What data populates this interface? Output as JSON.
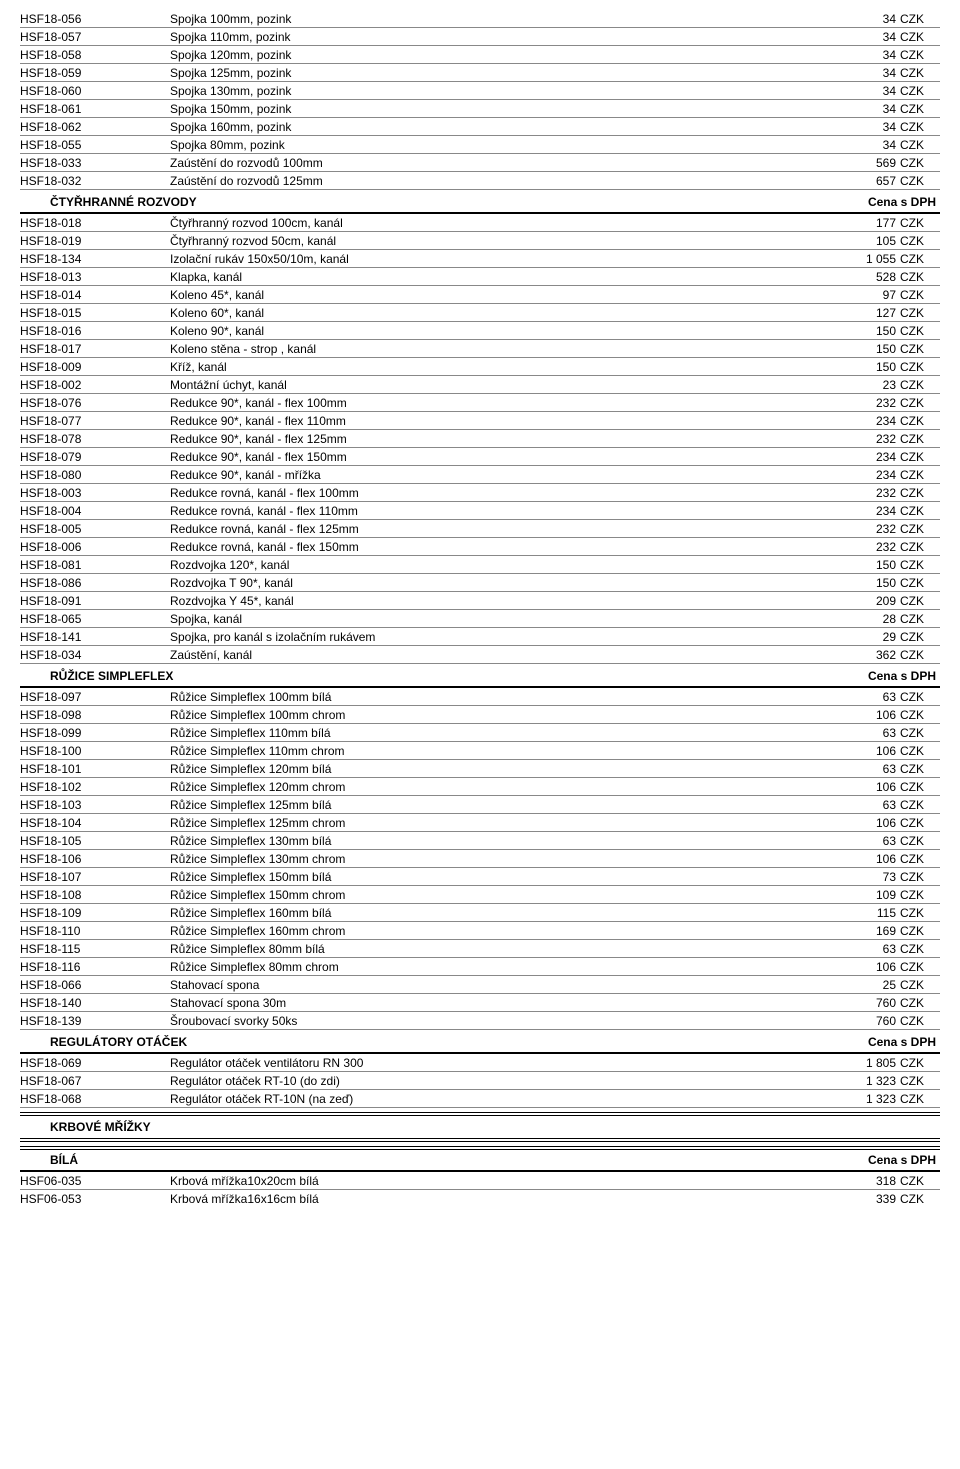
{
  "font_size": 12,
  "colors": {
    "text": "#000000",
    "bg": "#ffffff",
    "line": "#888888",
    "line_bold": "#000000"
  },
  "currency": "CZK",
  "price_header": "Cena s DPH",
  "sections": [
    {
      "type": "plain",
      "rows": [
        {
          "code": "HSF18-056",
          "desc": "Spojka 100mm, pozink",
          "price": "34"
        },
        {
          "code": "HSF18-057",
          "desc": "Spojka 110mm, pozink",
          "price": "34"
        },
        {
          "code": "HSF18-058",
          "desc": "Spojka 120mm, pozink",
          "price": "34"
        },
        {
          "code": "HSF18-059",
          "desc": "Spojka 125mm, pozink",
          "price": "34"
        },
        {
          "code": "HSF18-060",
          "desc": "Spojka 130mm, pozink",
          "price": "34"
        },
        {
          "code": "HSF18-061",
          "desc": "Spojka 150mm, pozink",
          "price": "34"
        },
        {
          "code": "HSF18-062",
          "desc": "Spojka 160mm, pozink",
          "price": "34"
        },
        {
          "code": "HSF18-055",
          "desc": "Spojka 80mm, pozink",
          "price": "34"
        },
        {
          "code": "HSF18-033",
          "desc": "Zaústění do rozvodů 100mm",
          "price": "569"
        },
        {
          "code": "HSF18-032",
          "desc": "Zaústění do rozvodů 125mm",
          "price": "657"
        }
      ]
    },
    {
      "type": "header",
      "title": "ČTYŘHRANNÉ ROZVODY",
      "rows": [
        {
          "code": "HSF18-018",
          "desc": "Čtyřhranný rozvod 100cm, kanál",
          "price": "177"
        },
        {
          "code": "HSF18-019",
          "desc": "Čtyřhranný rozvod 50cm, kanál",
          "price": "105"
        },
        {
          "code": "HSF18-134",
          "desc": "Izolační rukáv 150x50/10m, kanál",
          "price": "1 055"
        },
        {
          "code": "HSF18-013",
          "desc": "Klapka, kanál",
          "price": "528"
        },
        {
          "code": "HSF18-014",
          "desc": "Koleno 45*, kanál",
          "price": "97"
        },
        {
          "code": "HSF18-015",
          "desc": "Koleno 60*, kanál",
          "price": "127"
        },
        {
          "code": "HSF18-016",
          "desc": "Koleno 90*, kanál",
          "price": "150"
        },
        {
          "code": "HSF18-017",
          "desc": "Koleno stěna - strop , kanál",
          "price": "150"
        },
        {
          "code": "HSF18-009",
          "desc": "Kříž, kanál",
          "price": "150"
        },
        {
          "code": "HSF18-002",
          "desc": "Montážní úchyt, kanál",
          "price": "23"
        },
        {
          "code": "HSF18-076",
          "desc": "Redukce 90*, kanál - flex 100mm",
          "price": "232"
        },
        {
          "code": "HSF18-077",
          "desc": "Redukce 90*, kanál - flex 110mm",
          "price": "234"
        },
        {
          "code": "HSF18-078",
          "desc": "Redukce 90*, kanál - flex 125mm",
          "price": "232"
        },
        {
          "code": "HSF18-079",
          "desc": "Redukce 90*, kanál - flex 150mm",
          "price": "234"
        },
        {
          "code": "HSF18-080",
          "desc": "Redukce 90*, kanál - mřížka",
          "price": "234"
        },
        {
          "code": "HSF18-003",
          "desc": "Redukce rovná, kanál - flex 100mm",
          "price": "232"
        },
        {
          "code": "HSF18-004",
          "desc": "Redukce rovná, kanál - flex 110mm",
          "price": "234"
        },
        {
          "code": "HSF18-005",
          "desc": "Redukce rovná, kanál - flex 125mm",
          "price": "232"
        },
        {
          "code": "HSF18-006",
          "desc": "Redukce rovná, kanál - flex 150mm",
          "price": "232"
        },
        {
          "code": "HSF18-081",
          "desc": "Rozdvojka 120*, kanál",
          "price": "150"
        },
        {
          "code": "HSF18-086",
          "desc": "Rozdvojka T 90*, kanál",
          "price": "150"
        },
        {
          "code": "HSF18-091",
          "desc": "Rozdvojka Y 45*, kanál",
          "price": "209"
        },
        {
          "code": "HSF18-065",
          "desc": "Spojka, kanál",
          "price": "28"
        },
        {
          "code": "HSF18-141",
          "desc": "Spojka, pro kanál s izolačním rukávem",
          "price": "29"
        },
        {
          "code": "HSF18-034",
          "desc": "Zaústění, kanál",
          "price": "362"
        }
      ]
    },
    {
      "type": "header",
      "title": "RŮŽICE SIMPLEFLEX",
      "rows": [
        {
          "code": "HSF18-097",
          "desc": "Růžice Simpleflex 100mm bílá",
          "price": "63"
        },
        {
          "code": "HSF18-098",
          "desc": "Růžice Simpleflex 100mm chrom",
          "price": "106"
        },
        {
          "code": "HSF18-099",
          "desc": "Růžice Simpleflex 110mm bílá",
          "price": "63"
        },
        {
          "code": "HSF18-100",
          "desc": "Růžice Simpleflex 110mm chrom",
          "price": "106"
        },
        {
          "code": "HSF18-101",
          "desc": "Růžice Simpleflex 120mm bílá",
          "price": "63"
        },
        {
          "code": "HSF18-102",
          "desc": "Růžice Simpleflex 120mm chrom",
          "price": "106"
        },
        {
          "code": "HSF18-103",
          "desc": "Růžice Simpleflex 125mm bílá",
          "price": "63"
        },
        {
          "code": "HSF18-104",
          "desc": "Růžice Simpleflex 125mm chrom",
          "price": "106"
        },
        {
          "code": "HSF18-105",
          "desc": "Růžice Simpleflex 130mm bílá",
          "price": "63"
        },
        {
          "code": "HSF18-106",
          "desc": "Růžice Simpleflex 130mm chrom",
          "price": "106"
        },
        {
          "code": "HSF18-107",
          "desc": "Růžice Simpleflex 150mm bílá",
          "price": "73"
        },
        {
          "code": "HSF18-108",
          "desc": "Růžice Simpleflex 150mm chrom",
          "price": "109"
        },
        {
          "code": "HSF18-109",
          "desc": "Růžice Simpleflex 160mm bílá",
          "price": "115"
        },
        {
          "code": "HSF18-110",
          "desc": "Růžice Simpleflex 160mm chrom",
          "price": "169"
        },
        {
          "code": "HSF18-115",
          "desc": "Růžice Simpleflex 80mm bílá",
          "price": "63"
        },
        {
          "code": "HSF18-116",
          "desc": "Růžice Simpleflex 80mm chrom",
          "price": "106"
        },
        {
          "code": "HSF18-066",
          "desc": "Stahovací spona",
          "price": "25"
        },
        {
          "code": "HSF18-140",
          "desc": "Stahovací spona 30m",
          "price": "760"
        },
        {
          "code": "HSF18-139",
          "desc": "Šroubovací svorky 50ks",
          "price": "760"
        }
      ]
    },
    {
      "type": "header",
      "title": "REGULÁTORY OTÁČEK",
      "rows": [
        {
          "code": "HSF18-069",
          "desc": "Regulátor otáček ventilátoru RN 300",
          "price": "1 805"
        },
        {
          "code": "HSF18-067",
          "desc": "Regulátor otáček RT-10 (do zdi)",
          "price": "1 323"
        },
        {
          "code": "HSF18-068",
          "desc": "Regulátor otáček RT-10N (na zeď)",
          "price": "1 323"
        }
      ]
    },
    {
      "type": "standalone",
      "title": "KRBOVÉ MŘÍŽKY"
    },
    {
      "type": "header",
      "double_top": true,
      "title": "BÍLÁ",
      "rows": [
        {
          "code": "HSF06-035",
          "desc": "Krbová mřížka10x20cm bílá",
          "price": "318"
        },
        {
          "code": "HSF06-053",
          "desc": "Krbová mřížka16x16cm bílá",
          "price": "339"
        }
      ]
    }
  ]
}
